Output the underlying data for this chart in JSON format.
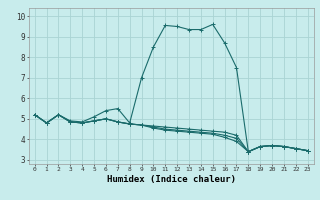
{
  "title": "",
  "xlabel": "Humidex (Indice chaleur)",
  "bg_color": "#c8ecec",
  "grid_color": "#aad4d4",
  "line_color": "#1a6b6b",
  "xlim": [
    -0.5,
    23.5
  ],
  "ylim": [
    2.8,
    10.4
  ],
  "xticks": [
    0,
    1,
    2,
    3,
    4,
    5,
    6,
    7,
    8,
    9,
    10,
    11,
    12,
    13,
    14,
    15,
    16,
    17,
    18,
    19,
    20,
    21,
    22,
    23
  ],
  "yticks": [
    3,
    4,
    5,
    6,
    7,
    8,
    9,
    10
  ],
  "series": [
    {
      "x": [
        0,
        1,
        2,
        3,
        4,
        5,
        6,
        7,
        8,
        9,
        10,
        11,
        12,
        13,
        14,
        15,
        16,
        17,
        18,
        19,
        20,
        21,
        22,
        23
      ],
      "y": [
        5.2,
        4.8,
        5.2,
        4.9,
        4.85,
        5.1,
        5.4,
        5.5,
        4.8,
        7.0,
        8.5,
        9.55,
        9.5,
        9.35,
        9.35,
        9.6,
        8.7,
        7.5,
        3.4,
        3.65,
        3.7,
        3.65,
        3.55,
        3.45
      ]
    },
    {
      "x": [
        0,
        1,
        2,
        3,
        4,
        5,
        6,
        7,
        8,
        9,
        10,
        11,
        12,
        13,
        14,
        15,
        16,
        17,
        18,
        19,
        20,
        21,
        22,
        23
      ],
      "y": [
        5.2,
        4.8,
        5.2,
        4.85,
        4.8,
        4.9,
        5.0,
        4.85,
        4.75,
        4.7,
        4.65,
        4.6,
        4.55,
        4.5,
        4.45,
        4.4,
        4.35,
        4.2,
        3.4,
        3.65,
        3.7,
        3.65,
        3.55,
        3.45
      ]
    },
    {
      "x": [
        0,
        1,
        2,
        3,
        4,
        5,
        6,
        7,
        8,
        9,
        10,
        11,
        12,
        13,
        14,
        15,
        16,
        17,
        18,
        19,
        20,
        21,
        22,
        23
      ],
      "y": [
        5.2,
        4.8,
        5.2,
        4.85,
        4.8,
        4.9,
        5.0,
        4.85,
        4.75,
        4.7,
        4.6,
        4.5,
        4.45,
        4.4,
        4.35,
        4.3,
        4.2,
        4.05,
        3.4,
        3.65,
        3.7,
        3.65,
        3.55,
        3.45
      ]
    },
    {
      "x": [
        0,
        1,
        2,
        3,
        4,
        5,
        6,
        7,
        8,
        9,
        10,
        11,
        12,
        13,
        14,
        15,
        16,
        17,
        18,
        19,
        20,
        21,
        22,
        23
      ],
      "y": [
        5.2,
        4.8,
        5.2,
        4.85,
        4.8,
        4.9,
        5.0,
        4.85,
        4.75,
        4.7,
        4.55,
        4.45,
        4.4,
        4.35,
        4.3,
        4.25,
        4.1,
        3.9,
        3.4,
        3.65,
        3.7,
        3.65,
        3.55,
        3.45
      ]
    }
  ]
}
